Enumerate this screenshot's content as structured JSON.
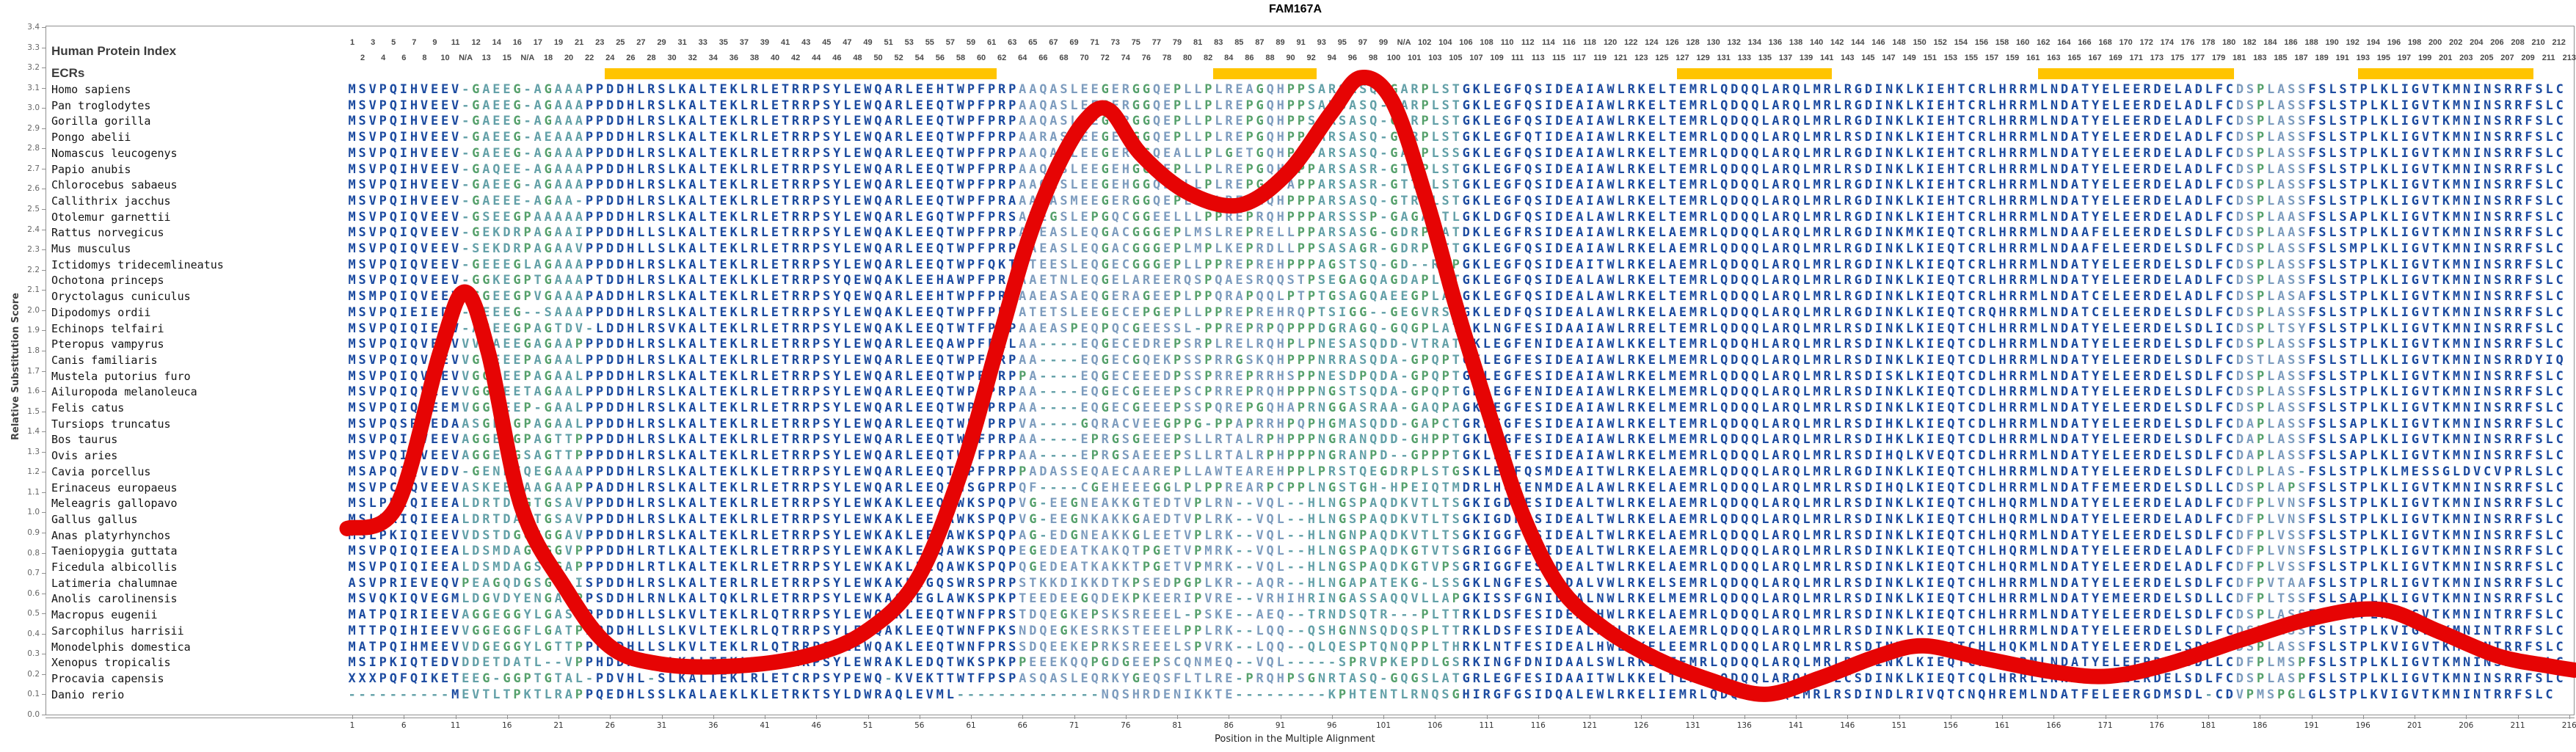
{
  "title": "FAM167A",
  "colors": {
    "curve": "#e60404",
    "ecr_bar": "#ffc400",
    "navy": "#1c4ba0",
    "steel": "#7d9cbe",
    "teal": "#63a0a8",
    "green": "#55a06b",
    "frame": "#909090"
  },
  "header": {
    "row1_label": "Human Protein Index",
    "ecr_label": "ECRs",
    "human_index": [
      1,
      2,
      3,
      4,
      5,
      6,
      7,
      8,
      9,
      10,
      11,
      "N/A",
      12,
      13,
      14,
      15,
      16,
      "N/A",
      17,
      18,
      19,
      20,
      21,
      22,
      23,
      24,
      25,
      26,
      27,
      28,
      29,
      30,
      31,
      32,
      33,
      34,
      35,
      36,
      37,
      38,
      39,
      40,
      41,
      42,
      43,
      44,
      45,
      46,
      47,
      48,
      49,
      50,
      51,
      52,
      53,
      54,
      55,
      56,
      57,
      58,
      59,
      60,
      61,
      62,
      63,
      64,
      65,
      66,
      67,
      68,
      69,
      70,
      71,
      72,
      73,
      74,
      75,
      76,
      77,
      78,
      79,
      80,
      81,
      82,
      83,
      84,
      85,
      86,
      87,
      88,
      89,
      90,
      91,
      92,
      93,
      94,
      95,
      96,
      97,
      98,
      99,
      100,
      "N/A",
      101,
      102,
      103,
      104,
      105,
      106,
      107,
      108,
      109,
      110,
      111,
      112,
      113,
      114,
      115,
      116,
      117,
      118,
      119,
      120,
      121,
      122,
      123,
      124,
      125,
      126,
      127,
      128,
      129,
      130,
      131,
      132,
      133,
      134,
      135,
      136,
      137,
      138,
      139,
      140,
      141,
      142,
      143,
      144,
      145,
      146,
      147,
      148,
      149,
      150,
      151,
      152,
      153,
      154,
      155,
      156,
      157,
      158,
      159,
      160,
      161,
      162,
      163,
      164,
      165,
      166,
      167,
      168,
      169,
      170,
      171,
      172,
      173,
      174,
      175,
      176,
      177,
      178,
      179,
      180,
      181,
      182,
      183,
      184,
      185,
      186,
      187,
      188,
      189,
      190,
      191,
      192,
      193,
      194,
      195,
      196,
      197,
      198,
      199,
      200,
      201,
      202,
      203,
      204,
      205,
      206,
      207,
      208,
      209,
      210,
      211,
      212,
      213
    ]
  },
  "ecr_bars": [
    {
      "from": 26,
      "to": 63
    },
    {
      "from": 85,
      "to": 94
    },
    {
      "from": 130,
      "to": 144
    },
    {
      "from": 165,
      "to": 183
    },
    {
      "from": 196,
      "to": 212
    }
  ],
  "column_classes": [
    {
      "from": 1,
      "to": 11,
      "cls": "navy"
    },
    {
      "from": 12,
      "to": 23,
      "cls": "teal"
    },
    {
      "from": 24,
      "to": 65,
      "cls": "navy"
    },
    {
      "from": 66,
      "to": 93,
      "cls": "steel"
    },
    {
      "from": 94,
      "to": 108,
      "cls": "teal"
    },
    {
      "from": 109,
      "to": 183,
      "cls": "navy"
    },
    {
      "from": 184,
      "to": 190,
      "cls": "steel"
    },
    {
      "from": 191,
      "to": 216,
      "cls": "navy"
    }
  ],
  "y_axis": {
    "label": "Relative Substitution Score",
    "ticks": [
      "3.4",
      "3.3",
      "3.2",
      "3.1",
      "3.0",
      "2.9",
      "2.8",
      "2.7",
      "2.6",
      "2.5",
      "2.4",
      "2.3",
      "2.2",
      "2.1",
      "2.0",
      "1.9",
      "1.8",
      "1.7",
      "1.6",
      "1.5",
      "1.4",
      "1.3",
      "1.2",
      "1.1",
      "1.0",
      "0.9",
      "0.8",
      "0.7",
      "0.6",
      "0.5",
      "0.4",
      "0.3",
      "0.2",
      "0.1",
      "0.0"
    ]
  },
  "x_axis": {
    "label": "Position in the Multiple Alignment",
    "ticks": [
      1,
      6,
      11,
      16,
      21,
      26,
      31,
      36,
      41,
      46,
      51,
      56,
      61,
      66,
      71,
      76,
      81,
      86,
      91,
      96,
      101,
      106,
      111,
      116,
      121,
      126,
      131,
      136,
      141,
      146,
      151,
      156,
      161,
      166,
      171,
      176,
      181,
      186,
      191,
      196,
      201,
      206,
      211,
      216
    ]
  },
  "alignment": {
    "species": [
      {
        "name": "Homo sapiens",
        "seq": "MSVPQIHVEEV-GAEEG-AGAAAPPDDHLRSLKALTEKLRLETRRPSYLEWQARLEEHTWPFPRPAAQASLEEGERGGQEPLLPLREAGQHPPSARSASQ-GARPLSTGKLEGFQSIDEAIAWLRKELTEMRLQDQQLARQLMRLRGDINKLKIEHTCRLHRRMLNDATYELEERDELADLFCDSPLASSFSLSTPLKLIGVTKMNINSRRFSLC"
      },
      {
        "name": "Pan troglodytes",
        "seq": "MSVPQIHVEEV-GAEEG-AGAAAPPDDHLRSLKALTEKLRLETRRPSYLEWQARLEEQTWPFPRPAAQASLEEGERGGQEPLLPLREPGQHPPSARSASQ-GARPLSTGKLEGFQSIDEAIAWLRKELTEMRLQDQQLARQLMRLRGDINKLKIEHTCRLHRRMLNDATYELEERDELADLFCDSPLASSFSLSTPLKLIGVTKMNINSRRFSLC"
      },
      {
        "name": "Gorilla gorilla",
        "seq": "MSVPQIHVEEV-GAEEG-AGAAAPPDDHLRSLKALTEKLRLETRRPSYLEWQARLEEQTWPFPRPAAQASLEEGERGGQEPLLPLREPGQHPPSARSASQ-GARPLSTGKLEGFQSIDEAIAWLRKELTEMRLQDQQLARQLMRLRGDINKLKIEHTCRLHRRMLNDATYELEERDELADLFCDSPLASSFSLSTPLKLIGVTKMNINSRRFSLC"
      },
      {
        "name": "Pongo abelii",
        "seq": "MSVPQIHVEEV-GAEEG-AEAAAPPDDHLRSLKALTEKLRLETRRPSYLEWQARLEEQTWPFPRPAARASLEEGERGGQEPLLPLREPGQHPPPARSASQ-GARPLSTGKLEGFQTIDEAIAWLRKELTEMRLQDQQLARQLMRLRSDINKLKIEHTCRLHRRMLNDATYELEERDELADLFCDSPLASSFSLSTPLKLIGVTKMNINSRRFSLC"
      },
      {
        "name": "Nomascus leucogenys",
        "seq": "MSVPQIHVEEV-GAEEG-AGAAAPPDDHLRSLKALTEKLRLETRRPSYLEWQARLEEQTWPFPRPAAQASLEEGERGGQEALLPLGETGQHPPPARSASQ-GARPLSSGKLEGFQSIDEAIAWLRKELTEMRLQDQQLARQLMRLRGDINKLKIEHTCRLHRRMLNDATYELEERDELADLFCDSPLASSFSLSTPLKLIGVTKMNINSRRFSLC"
      },
      {
        "name": "Papio anubis",
        "seq": "MSVPQIHVEEV-GAQEE-AGAAAPPDDHLRSLKALTEKLRLETRRPSYLEWQARLEEQTWPFPRPAAQASLEEGEHGGQEPLLPLREPGQHAPPARSASR-GTTPLSTGKLEGFQSIDEAIAWLRKELTEMRLQDQQLARQLMRLRSDINKLKIEHTCRLHRRMLNDATYELEERDELADLFCDSPLASSFSLSTPLKLIGVTKMNINSRRFSLC"
      },
      {
        "name": "Chlorocebus sabaeus",
        "seq": "MSVPQIHVEEV-GAEEG-AGAAAPPDDHLRSLKALTEKLRLETRRPSYLEWQARLEEQTWPFPRPAAQASLEEGEHGGQEPLLPLREPGQYAPPARSASR-GTTPLSTGKLEGFQSIDEAIAWLRKELTEMRLQDQQLARQLMRLRGDINKLKIEHTCRLHRRMLNDATYELEERDELADLFCDSPLASSFSLSTPLKLIGVTKMNINSRRFSLC"
      },
      {
        "name": "Callithrix jacchus",
        "seq": "MSVPQIHVEEV-GAEEE-AGAA-PPDDHLRSLKALTEKLRLETRRPSYLEWQARLEEQTWPFPRAAAQASMEEGERGGQEPLLPLREPEQHPPPARSASQ-GTRPLSTGKLEGFQSIDEAIAWLRKELTEMRLQDQQLARQLMRLRGDINKLKIEHTCRLHRRMLNDATYELEERDELADLFCDSPLASSFSLSTPLKLIGVTKMNINSRRFSLC"
      },
      {
        "name": "Otolemur garnettii",
        "seq": "MSVPQIQVEEV-GSEEGPAAAAAPPDDHLRSLKALTEKLRLETRRPSYLEWQARLEGQTWPFPRSATEGSLEPGQCGGEELLLPPREPRQHPPPARSSSP-GAGALTLGKLDGFQSIDEALAWLRKELTEMRLQDQQLARQLMRLRGDINKLKIEHTCRLHRRMLNDATYELEERDELADLFCDSPLAASFSLSAPLKLIGVTKMNINSRRFSLC"
      },
      {
        "name": "Rattus norvegicus",
        "seq": "MSVPQIQVEEV-GEKDRPAGAAIPPDDHLLSLKALTEKLRLETRRPSYLEWQAKLEEQTWPFPRPAAEASLEQGACGGGEPLMSLREPRELLPPARSASG-GDRPLATDKLEGFRSIDEAIAWLRKELAEMRLQDQQLARQLMRLRGDINKMKIEQTCRLHRRMLNDAAFELEERDELSDLFCDSPLAASFSLSTPLKLIGVTKMNINSRRFSLC"
      },
      {
        "name": "Mus musculus",
        "seq": "MSVPQIQVEEV-SEKDRPAGAAVPPDDHLLSLKALTEKLRLETRRPSYLEWQARLEEQTWPFPRPAAEASLEQGACGGGEPLMPLKEPRDLLPPSASAGR-GDRPLTTGKLEGFQSIDEAIAWLRKELAEMRLQDQQLARQLMRLRGDINKLKIEQTCRLHRRMLNDAAFELEERDELSDLFCDSPLASSFSLSMPLKLIGVTKMNINSRRFSLC"
      },
      {
        "name": "Ictidomys tridecemlineatus",
        "seq": "MSVPQIQVEEV-GEEEGLAGAAAPPDDHLRSLKALTEKLRLETRRPSYLEWQARLEEQTWPFQKTATEESLEQGECGGGEPLLPPREPREHPPPAGSTSQ-GD--RSPGKLEGFQSIDEAITWLRKELAEMRLQDQQLARQLMRLRGDINKLKIEQTCRLHRRMLNDATYELEERDELSDLFCDSPLASSFSLSTPLKLIGVTKMNINSRRFSLC"
      },
      {
        "name": "Ochotona princeps",
        "seq": "MSVPQIQVEEV-GGKEGPTGAAAPTDDHLRSLKALTEKLKLETRRPSYQEWQAKLEEHAWPFPRPAAETNLEQGELAREERQSPQAESRQQSTPSEGAGQAGDAPLATGKLEGFQSIDEALAWLRKELTEMRLQDQQLARQLMRLRGDINKLKIEQTCRLHRRMLNDATYELEERDELADLFCDSPLASSFSLSTPLKLIGVTKMNINSRRFSLC"
      },
      {
        "name": "Oryctolagus cuniculus",
        "seq": "MSMPQIQVEEV-GGEEGPVGAAAPADDHLRSLKALTEKLRLETRRPSYQEWQARLEEHTWPFPRPAAEASAEQGERAGEEPLPPQRAPQQLPTPTGSAGQAEEGPLAPGKLEGFQSIDEALAWLRKELTEMRLQDQQLARQLMRLRGDINKLKIEQTCRLHRRMLNDATCELEERDELADLFCDSPLASAFSLSTPLKLIGVTKMNINSRRFSLC"
      },
      {
        "name": "Dipodomys ordii",
        "seq": "MSVPQIEIEDV-GEEEG--SAAAPPDDHLRSLKALTEKLRLETRRPSYLEWQAKLEEQTWPFPRPATETSLEEGECEPGEPLLPPREPREHRQPTSIGG--GEGVRSIGKLEDFQSIDEALAWLRKELAEMRLQDQQLARQLMRLRGDINKLKIEQTCRQHRRMLNDATCELEERDELSDLFCDSPLASSFSLSTPLKLIGVTKMNINSRRFSLC"
      },
      {
        "name": "Echinops telfairi",
        "seq": "MSVPQIQIEEV-AGEEGPAGTDV-LDDHLRSVKALTEKLRLETRRPSYLEWQAKLEEQTWTFPRPAAEASPEQPQCGEESSL-PPREPRPQPPPDGRAGQ-GQGPLATSKLNGFESIDAAIAWLRRELTEMRLQDQQLARQLMRLRSDINKLKIEQTCHLHRRMLNDATYELEERDELSDLICDSPLTSYFSLSTPLKLIGVTKMNINSRRFSLC"
      },
      {
        "name": "Pteropus vampyrus",
        "seq": "MSVPQIQVEEVVVGAEEGAGAAPPPDDHLRSLKALTEKLRLETRRPSYLEWQARLEEQAWPFPRLAA----EQGECEDREPSRPLRELRQHPLPNESASQDD-VTRATGKLEGFENIDEAIAWLKKELTEMRLQDQHLARQLMRLRSDINKLKIEQTCDLHRRMLNDATYELEERDELSDLFCDSPLASSFSLSTPLKLIGVTKMNINSRRFSLC"
      },
      {
        "name": "Canis familiaris",
        "seq": "MSVPQIQVEEVVGGEEEPAGAALPPDDHLRSLKALTEKLRLETRRPSYLEWQARLEEQTWPFPRPAA----EQGECGQEKPSSPRRGSKQHPPPNRRASQDA-GPQPTGKLEGFESIDEAIAWLRKELMEMRLQDQQLARQLMRLRSDINKLKIEQTCDLHRRMLNDATYELEERDELSDLFCDSTLASSFSLSTLLKLIGVTKMNINSRRDYIQ"
      },
      {
        "name": "Mustela putorius furo",
        "seq": "MSVPQIQVEEVVGGEEEPAGAALPPDDHLRSLKALTEKLRLETRRPSYLEWQARLEEQTWPFPRPPA----EQGECEEEDPSSPRREPRRHSPPNESDPQDA-GPQPTGKLEGFESIDEAIAWLRKELMEMRLQDQQLARQLMRLRSDISKLKIEQTCDLHRRMLNDATYELEERDELSDLFCDSPLASSFSLSTPLKLIGVTKMNINSRRFSLC"
      },
      {
        "name": "Ailuropoda melanoleuca",
        "seq": "MSVPQIQVEEVVGGEEETAGAALPPDDHLRSLKALTEKLRLETRRPSYLEWQARLEEQTWPFPRPAA----EQGECGEEEPSCPRREPRQHPPPNGSTSQDA-GPQPTGKLEGFENIDEAIAWLRKELMEMRLQDQQLARQLMRLRSDINKLKIEQTCDLHRRMLNDATYELEERDELSDLFCDSPLASSFSLSTPLKLIGVTKMNINSRRFSLC"
      },
      {
        "name": "Felis catus",
        "seq": "MSVPQIQVEEMVGGEEEP-GAALPPDDHLRSLKALTEKLRLETRRPSYLEWQARLEEQTWPFPRPAA----EQGECGEEEPSSPQREPGQHAPRNGGASRAA-GAQPAGKLEGFESIDEAIAWLRKELMEMRLQDQQLARQLMRLRSDINKLKIEQTCDLHRRMLNDATYELEERDELSDLFCDSPLASSFSLSTPLKLIGVTKMNINSRRFSLC"
      },
      {
        "name": "Tursiops truncatus",
        "seq": "MSVPQSRGEDAASGEEGPAGAALPPDDHLRSLKALTEKLRLETRRPSYLEWQARLEEQTWPFPRPVA----GQRACVEEGPPG-PPAPRRHPQPHGMASQDD-GAPCTGRLEGFESIDEAIAWLRKELTEMRLQDQQLARQLMRLRSDIHKLKIEQTCDLHRRMLNDATYELEERDELSDLFCDAPLASSFSLSAPLKLIGVTKMNINSRRFSLC"
      },
      {
        "name": "Bos taurus",
        "seq": "MSVPQIQVEEVAGGEEGPAGTTPPPDDHLRSLKALTEKLRLETRRPSYLEWQARLEEQTWPFPRPAA----EPRGSGEEEPSLLRTALRPHPPPNGRANQDD-GHPPTGKLEGFESIDEAIAWLRKELMEMRLQDQQLARQLMRLRSDIHKLKIEQTCDLHRRMLNDATYELEERDELSDLFCDAPLASSFSLSAPLKLIGVTKMNINSRRFSLC"
      },
      {
        "name": "Ovis aries",
        "seq": "MSVPQIQVEEVAGGEEGSAGTTPPPDDHLRSLKALTEKLRLETRRPSYLEWQARLEEQTWSFPRPAA----EPRGSAEEEPSLLRTALRPHPPPNGRANPD--GPPPTGKLEGFESIDEAIAWLRKELMEMRLQDQQLARQLMRLRSDIHQLKVEQTCDLHRRMLNDATYELEERDELSDLFCDAPLASSFSLSAPLKLIGVTKMNINSRRFSLC"
      },
      {
        "name": "Cavia porcellus",
        "seq": "MSAPQIQVEDV-GENEEQEGAAAPPDDHLRSLKALTEKLKLETRRPSYLEWQARLEEQTWPFPRPPADASSEQAECAAREPLLAWTEAREHPPLPRSTQEGDRPLSTGSKLEGFQSMDEAITWLRKELAEMRLQDQQLARQLMRLRGDINKLKIEQTCHLHRRMLNDATYELEERDELSDLFCDLPLAS-FSLSTPLKLMESSGLDVCVPRLSLC"
      },
      {
        "name": "Erinaceus europaeus",
        "seq": "MSVPCIQVEEVASKEEGAAGAAPPADDHLRSLKALTEKLRLETRRPSYLEWQARLEEQTWSGPRPQF----CGEHEEEGGLPLPPREARPCPPLNGSTGH-HPEIQTMDRLHGFENMDEALAWLRKELAEMRLQDQQLARQLMRLRSDIHQLKIEQTCDLHRRMLNDATFEMEERDELSDLLCDSPLAPSFSLSTPLKLIGVTKMNINSRRFSLC"
      },
      {
        "name": "Meleagris gallopavo",
        "seq": "MSLPKIQIEEALDRTDAGTGSAVPPDDHLRSLKALTEKLRLETRRPSYLEWKAKLEEQAWKSPQPVG-EEGNEAKKGTEDTVPLRN--VQL--HLNGSPAQDKVTLTSGKIGDFESIDEALTWLRKELAEMRLQDQQLARQLMRLRSDINKLKIEQTCHLHQRMLNDATYELEERDELADLFCDFPLVNSFSLSTPLKLIGVTKMNINSRRFSLC"
      },
      {
        "name": "Gallus gallus",
        "seq": "MSLPKIQIEEALDRTDAGTGSAVPPDDHLRSLKALTEKLRLETRRPSYLEWKAKLEEQAWKSPQPVG-EEGNKAKKGAEDTVPLRK--VQL--HLNGSPAQDKVTLTSGKIGDFESIDEALTWLRKELAEMRLQDQQLARQLMRLRSDINKLKIEQTCHLHQRMLNDATYELEERDELADLFCDFPLVNSFSLSTPLKLIGVTKMNINSRRFSLC"
      },
      {
        "name": "Anas platyrhynchos",
        "seq": "MSLPKIQIEEVVDSTDGGSGGAVPPDDHLRSLKALTEKLRLETRRPSYLEWKAKLEEQAWKSPQPAG-EDGNEAKKGLEETVPLRK--VQL--HLNGNPAQDKVTLTSGKIGGFESIDEALTWLRKELAEMRLQDQQLARQLMRLRSDINKLKIEQTCHLHQRMLNDATYELEERDELSDLFCDFPLVSSFSLSTPLKLIGVTKMNINSRRFSLC"
      },
      {
        "name": "Taeniopygia guttata",
        "seq": "MSVPQIQIEEALDSMDAGSGGVPPPDDHLRTLKALTEKLRLETRRPSYLEWKAKLEEQAWKSPQPEGEDEATKAKQTPGETVPMRK--VQL--HLNGSPAQDKGTVTSGRIGGFESIDEALTWLRKELAEMRLQDQQLARQLMRLRSDINKLKIEQTCHLHQRMLNDATYELEERDELADLFCDFPLVNSFSLSTPLKLIGVTKMNINSRRFSLC"
      },
      {
        "name": "Ficedula albicollis",
        "seq": "MSVPQIQIEEALDSMDAGSGGAPPPDDHLRTLKALTEKLRLETRRPSYLEWKAKLEEQAWKSPQPQGEDEATKAKKTPGETVPMRK--VQL--HLNGSPAQDKGTVPSGRIGGFESIDEALTWLRKELAEMRLQDQQLARQLMRLRSDINKLKIEQTCHLHQRMLNDATYELEERDELADLFCDFPLVSSFSLSTPLKLIGVTKMNINSRRFSLC"
      },
      {
        "name": "Latimeria chalumnae",
        "seq": "ASVPRIEVEQVPEAGQDGSG--ISPDDHLRSLKALTERLRLETRRPSYLEWKAKLEGQSWRSPRPSTKKDIKKDTKPSEDPGPLKR--AQR--HLNGAPATEKG-LSSGKLNGFESIDDALVWLRKELSEMRLQDQQLARQLMRLRSDINKLKIEQTCHLHRRMLNDATYELEERDELSDLFCDFPVTAAFSLSTPLRLIGVTKMNINSRRFSLC"
      },
      {
        "name": "Anolis carolinensis",
        "seq": "MSVQKIQVEGMLDGVDYENGAGPPSDDHLRNLKALTQKLRLETRRPSYLEWKAQLEGLAWKSPKPTEEDEEGQDEKPKEERIPVRE--VRHIHRINGASSAQQVLLAPGKISSFGNIDEALNWLRKELMEMRLQDQQLARQLMRLRSDINKLKIEQTCHLHRRMLNDATYEMEERDELSDLLCDFPLTSSFSLSAPLKLIGVTKMNINSRRFSLC"
      },
      {
        "name": "Macropus eugenii",
        "seq": "MATPQIRIEEVAGGEGGYLGASPPPDDHLLSLKVLTEKLRLQTRRPSYLEWQAKLEEQTWNFPRSTDQEGKEPSKSREEEL-PSKE--AEQ--TRNDSQTR---PLTTRKLDSFESIDEALHWLRKELAEMRLQDQQLARQLMRLRSDINKLKIEQTCHLHRRMLNDATYELEERDELSDLFCDSPLASSFSLSTPLKVIGVTKMNINTRRFSLC"
      },
      {
        "name": "Sarcophilus harrisii",
        "seq": "MTTPQIHIEEVVGGEGGFLGATPPPDDHLLSLKVLTEKLRLQTRRPSYLEWQAKLEEQTWNFPKSNDQEGKESRKSTEEELPPLRK--LQQ--QSHGNNSQDQSPLTTRKLDSFESIDEALHWLRKELAEMRLQDQQLARQLMRLRSDINKLKIEQTCHLHRRMLNDATYELEERDELSDLFCDSPLASSFSLSTPLKVIGVTKMNINTRRFSLC"
      },
      {
        "name": "Monodelphis domestica",
        "seq": "MATPQIHMEEVVDGEGGYLGTTPPPDDHLLSLKVLTEKLRLQTRRPSYLEWQAKLEEQTWNFPRSSDQEEKEPRKSREEELSPVRK--LQQ--QLQESPTQNQPPLTHRKLNTFESIDEALHWLRKELEEMRLQDQQLARQLMRLRSDINKLKIEQTCHLHQKMLNDATYELEERDELSDLFCDSPLASSFSLSTPLKVIGVTKMNINTRRFSLC"
      },
      {
        "name": "Xenopus tropicalis",
        "seq": "MSIPKIQTEDVDDETDATL--VPPHDDHLRSLKALTEKLRLETRRPSYLEWRAKLEDQTWKSPKPPEEEKQQPGDGEEPSCQNMEQ--VQL-----SPRVPKEPDLGSRKINGFDNIDAALSWLRKELTEMRLQDQQLARQLMRLRSDINKLKIEQTCHLHRRMLNDATYELEERDELSDLLCDFPLMSPFSLSTPLKLIGVTKMNINSRRFSLC"
      },
      {
        "name": "Procavia capensis",
        "seq": "XXXPQFQIKETEEG-GGPTGTAL-PDVHL-SLKALTEKLRLETCRPSYPEWQ-KVEKTTWTFPSPASQASLEQRKYGEQSFLTLRE-PRQHPSGNRTASQ-GQGSLATGRLEGFESIDAAITWLKKELTEMRLQDQQLARQLMHLCSDINKLKIEQTCQLHRRLLNNATYELEERDELSDLFCDSPLASPFSLSTPLKLIGVTKMNINSRRFSLC"
      },
      {
        "name": "Danio rerio",
        "seq": "----------MEVTLTPKTLRAPPQEDHLSSLKALAEKLKLETRKTSYLDWRAQLEVML--------------NQSHRDENIKKTE---------KPHTENTLRNQSGHIRGFGSIDQALEWLRKELIEMRLQDQQLALQLMRLRSDINDLRIVQTCNQHREMLNDATFELEERGDMSDL-CDVPMSPGLGLSTPLKVIGVTKMNINTRRFSLC"
      }
    ]
  },
  "chart_data": {
    "type": "line",
    "title": "FAM167A",
    "xlabel": "Position in the Multiple Alignment",
    "ylabel": "Relative Substitution Score",
    "xlim": [
      1,
      216
    ],
    "ylim": [
      0,
      3.4
    ],
    "legend": "none",
    "grid": false,
    "series_name": "relative substitution score",
    "points": [
      [
        0.5,
        0.92
      ],
      [
        5.3,
        1.03
      ],
      [
        9.5,
        1.79
      ],
      [
        11.9,
        2.09
      ],
      [
        14.2,
        1.79
      ],
      [
        17.4,
        1.03
      ],
      [
        21.6,
        0.63
      ],
      [
        25.9,
        0.34
      ],
      [
        30.9,
        0.25
      ],
      [
        38.0,
        0.24
      ],
      [
        45.1,
        0.29
      ],
      [
        50.8,
        0.41
      ],
      [
        55.8,
        0.67
      ],
      [
        60.1,
        1.21
      ],
      [
        63.6,
        1.83
      ],
      [
        66.5,
        2.34
      ],
      [
        69.3,
        2.7
      ],
      [
        72.1,
        2.94
      ],
      [
        74.4,
        2.99
      ],
      [
        77.5,
        2.77
      ],
      [
        82.1,
        2.58
      ],
      [
        87.1,
        2.52
      ],
      [
        91.7,
        2.68
      ],
      [
        96.0,
        2.98
      ],
      [
        98.8,
        3.15
      ],
      [
        101.9,
        3.03
      ],
      [
        105.2,
        2.54
      ],
      [
        108.1,
        2.01
      ],
      [
        111.3,
        1.48
      ],
      [
        114.5,
        0.99
      ],
      [
        118.1,
        0.63
      ],
      [
        122.3,
        0.43
      ],
      [
        127.3,
        0.28
      ],
      [
        132.7,
        0.17
      ],
      [
        138.0,
        0.1
      ],
      [
        143.3,
        0.18
      ],
      [
        149.0,
        0.29
      ],
      [
        153.4,
        0.34
      ],
      [
        159.0,
        0.28
      ],
      [
        166.1,
        0.21
      ],
      [
        171.4,
        0.19
      ],
      [
        177.1,
        0.25
      ],
      [
        184.2,
        0.37
      ],
      [
        191.3,
        0.48
      ],
      [
        197.7,
        0.52
      ],
      [
        203.4,
        0.41
      ],
      [
        209.1,
        0.29
      ],
      [
        214.1,
        0.24
      ],
      [
        216.5,
        0.22
      ]
    ]
  }
}
